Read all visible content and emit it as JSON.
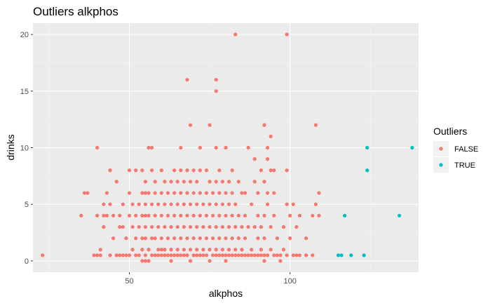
{
  "chart_data": {
    "type": "scatter",
    "title": "Outliers alkphos",
    "xlabel": "alkphos",
    "ylabel": "drinks",
    "xlim": [
      20,
      140
    ],
    "ylim": [
      -1,
      21
    ],
    "x_ticks": [
      50,
      100
    ],
    "y_ticks": [
      0,
      5,
      10,
      15,
      20
    ],
    "x_tick_labels": [
      "50",
      "100"
    ],
    "y_tick_labels": [
      "0",
      "5",
      "10",
      "15",
      "20"
    ],
    "grid": true,
    "legend": {
      "title": "Outliers",
      "position": "right",
      "entries": [
        "FALSE",
        "TRUE"
      ]
    },
    "series": [
      {
        "name": "FALSE",
        "color": "#F8766D",
        "points": [
          [
            23,
            0.5
          ],
          [
            35,
            4
          ],
          [
            36,
            6
          ],
          [
            37,
            6
          ],
          [
            39,
            0.5
          ],
          [
            40,
            0.5
          ],
          [
            40,
            4
          ],
          [
            40,
            10
          ],
          [
            41,
            1
          ],
          [
            41,
            0.5
          ],
          [
            42,
            3
          ],
          [
            42,
            4
          ],
          [
            42,
            5
          ],
          [
            43,
            4
          ],
          [
            43,
            6
          ],
          [
            44,
            8
          ],
          [
            44,
            0.5
          ],
          [
            44,
            5
          ],
          [
            45,
            2
          ],
          [
            45,
            4
          ],
          [
            46,
            0.5
          ],
          [
            46,
            7
          ],
          [
            47,
            3
          ],
          [
            47,
            4
          ],
          [
            47,
            0.5
          ],
          [
            48,
            3
          ],
          [
            48,
            0.5
          ],
          [
            48,
            5
          ],
          [
            49,
            0.5
          ],
          [
            49,
            2
          ],
          [
            50,
            0.5
          ],
          [
            50,
            4
          ],
          [
            50,
            6
          ],
          [
            50,
            8
          ],
          [
            51,
            1
          ],
          [
            51,
            3
          ],
          [
            51,
            5
          ],
          [
            52,
            0.5
          ],
          [
            52,
            2
          ],
          [
            52,
            4
          ],
          [
            52,
            8
          ],
          [
            53,
            0.5
          ],
          [
            53,
            3
          ],
          [
            53,
            5
          ],
          [
            54,
            0
          ],
          [
            54,
            1
          ],
          [
            54,
            2
          ],
          [
            54,
            4
          ],
          [
            54,
            6
          ],
          [
            54,
            8
          ],
          [
            55,
            0
          ],
          [
            55,
            0.5
          ],
          [
            55,
            2
          ],
          [
            55,
            3
          ],
          [
            55,
            4
          ],
          [
            55,
            5
          ],
          [
            55,
            6
          ],
          [
            55,
            7
          ],
          [
            56,
            10
          ],
          [
            56,
            0
          ],
          [
            56,
            1
          ],
          [
            56,
            4
          ],
          [
            56,
            6
          ],
          [
            57,
            0.5
          ],
          [
            57,
            2
          ],
          [
            57,
            3
          ],
          [
            57,
            5
          ],
          [
            57,
            8
          ],
          [
            57,
            10
          ],
          [
            58,
            0.5
          ],
          [
            58,
            2
          ],
          [
            58,
            4
          ],
          [
            58,
            6
          ],
          [
            58,
            7
          ],
          [
            59,
            0.5
          ],
          [
            59,
            1
          ],
          [
            59,
            3
          ],
          [
            59,
            5
          ],
          [
            60,
            0.5
          ],
          [
            60,
            1
          ],
          [
            60,
            2
          ],
          [
            60,
            4
          ],
          [
            60,
            6
          ],
          [
            60,
            8
          ],
          [
            61,
            0.5
          ],
          [
            61,
            1
          ],
          [
            61,
            3
          ],
          [
            61,
            5
          ],
          [
            61,
            7
          ],
          [
            62,
            0.5
          ],
          [
            62,
            2
          ],
          [
            62,
            4
          ],
          [
            62,
            6
          ],
          [
            63,
            0
          ],
          [
            63,
            0.5
          ],
          [
            63,
            1
          ],
          [
            63,
            3
          ],
          [
            63,
            5
          ],
          [
            63,
            7
          ],
          [
            64,
            0.5
          ],
          [
            64,
            2
          ],
          [
            64,
            4
          ],
          [
            64,
            6
          ],
          [
            64,
            8
          ],
          [
            65,
            0.5
          ],
          [
            65,
            1
          ],
          [
            65,
            3
          ],
          [
            65,
            5
          ],
          [
            65,
            7
          ],
          [
            66,
            0.5
          ],
          [
            66,
            2
          ],
          [
            66,
            4
          ],
          [
            66,
            6
          ],
          [
            66,
            8
          ],
          [
            66,
            10
          ],
          [
            67,
            0.5
          ],
          [
            67,
            1
          ],
          [
            67,
            3
          ],
          [
            67,
            5
          ],
          [
            67,
            7
          ],
          [
            68,
            0.5
          ],
          [
            68,
            2
          ],
          [
            68,
            4
          ],
          [
            68,
            6
          ],
          [
            68,
            8
          ],
          [
            68,
            16
          ],
          [
            69,
            12
          ],
          [
            69,
            0
          ],
          [
            69,
            1
          ],
          [
            69,
            3
          ],
          [
            69,
            5
          ],
          [
            69,
            7
          ],
          [
            70,
            0.5
          ],
          [
            70,
            2
          ],
          [
            70,
            4
          ],
          [
            70,
            6
          ],
          [
            70,
            8
          ],
          [
            71,
            0.5
          ],
          [
            71,
            1
          ],
          [
            71,
            3
          ],
          [
            71,
            5
          ],
          [
            71,
            7
          ],
          [
            72,
            0.5
          ],
          [
            72,
            2
          ],
          [
            72,
            4
          ],
          [
            72,
            6
          ],
          [
            72,
            8
          ],
          [
            72,
            10
          ],
          [
            73,
            0.5
          ],
          [
            73,
            1
          ],
          [
            73,
            3
          ],
          [
            73,
            5
          ],
          [
            74,
            0.5
          ],
          [
            74,
            2
          ],
          [
            74,
            4
          ],
          [
            74,
            6
          ],
          [
            74,
            8
          ],
          [
            75,
            12
          ],
          [
            75,
            0
          ],
          [
            75,
            1
          ],
          [
            75,
            3
          ],
          [
            75,
            5
          ],
          [
            75,
            7
          ],
          [
            76,
            0.5
          ],
          [
            76,
            2
          ],
          [
            76,
            4
          ],
          [
            76,
            6
          ],
          [
            77,
            16
          ],
          [
            77,
            15
          ],
          [
            77,
            0.5
          ],
          [
            77,
            1
          ],
          [
            77,
            3
          ],
          [
            77,
            5
          ],
          [
            77,
            7
          ],
          [
            77,
            10
          ],
          [
            78,
            0.5
          ],
          [
            78,
            2
          ],
          [
            78,
            4
          ],
          [
            78,
            6
          ],
          [
            78,
            8
          ],
          [
            79,
            0.5
          ],
          [
            79,
            1
          ],
          [
            79,
            3
          ],
          [
            79,
            5
          ],
          [
            79,
            7
          ],
          [
            80,
            0
          ],
          [
            80,
            0.5
          ],
          [
            80,
            2
          ],
          [
            80,
            4
          ],
          [
            80,
            6
          ],
          [
            80,
            10
          ],
          [
            81,
            0.5
          ],
          [
            81,
            1
          ],
          [
            81,
            3
          ],
          [
            81,
            5
          ],
          [
            81,
            7
          ],
          [
            82,
            0.5
          ],
          [
            82,
            2
          ],
          [
            82,
            4
          ],
          [
            82,
            6
          ],
          [
            82,
            8
          ],
          [
            83,
            20
          ],
          [
            83,
            0.5
          ],
          [
            83,
            1
          ],
          [
            83,
            3
          ],
          [
            83,
            5
          ],
          [
            84,
            0.5
          ],
          [
            84,
            2
          ],
          [
            84,
            4
          ],
          [
            84,
            7
          ],
          [
            85,
            0.5
          ],
          [
            85,
            1
          ],
          [
            85,
            3
          ],
          [
            85,
            6
          ],
          [
            86,
            0.5
          ],
          [
            86,
            2
          ],
          [
            86,
            4
          ],
          [
            86,
            6
          ],
          [
            87,
            10
          ],
          [
            87,
            0.5
          ],
          [
            87,
            3
          ],
          [
            88,
            0.5
          ],
          [
            88,
            1
          ],
          [
            88,
            5
          ],
          [
            89,
            9
          ],
          [
            89,
            0.5
          ],
          [
            89,
            3
          ],
          [
            89,
            7
          ],
          [
            90,
            0.5
          ],
          [
            90,
            2
          ],
          [
            90,
            4
          ],
          [
            90,
            6
          ],
          [
            91,
            0.5
          ],
          [
            91,
            1
          ],
          [
            91,
            3
          ],
          [
            91,
            8
          ],
          [
            92,
            12
          ],
          [
            92,
            0
          ],
          [
            92,
            0.5
          ],
          [
            92,
            2
          ],
          [
            92,
            4
          ],
          [
            92,
            7
          ],
          [
            93,
            10
          ],
          [
            93,
            9
          ],
          [
            93,
            0.5
          ],
          [
            93,
            5
          ],
          [
            93,
            6
          ],
          [
            94,
            11
          ],
          [
            94,
            8
          ],
          [
            94,
            1
          ],
          [
            94,
            3
          ],
          [
            95,
            8
          ],
          [
            95,
            0.5
          ],
          [
            95,
            4
          ],
          [
            95,
            6
          ],
          [
            96,
            0.5
          ],
          [
            96,
            2
          ],
          [
            97,
            0
          ],
          [
            97,
            0.5
          ],
          [
            98,
            1
          ],
          [
            98,
            3
          ],
          [
            99,
            20
          ],
          [
            99,
            0.5
          ],
          [
            99,
            8
          ],
          [
            99,
            5
          ],
          [
            100,
            4
          ],
          [
            100,
            2
          ],
          [
            101,
            0.5
          ],
          [
            101,
            5
          ],
          [
            102,
            0.5
          ],
          [
            102,
            3
          ],
          [
            103,
            0.5
          ],
          [
            103,
            4
          ],
          [
            105,
            0.5
          ],
          [
            105,
            2
          ],
          [
            107,
            0.5
          ],
          [
            107,
            4
          ],
          [
            108,
            12
          ],
          [
            108,
            5
          ],
          [
            109,
            4
          ],
          [
            109,
            6
          ]
        ]
      },
      {
        "name": "TRUE",
        "color": "#00BFC4",
        "points": [
          [
            115,
            0.5
          ],
          [
            116,
            0.5
          ],
          [
            117,
            4
          ],
          [
            119,
            0.5
          ],
          [
            123,
            0.5
          ],
          [
            124,
            10
          ],
          [
            124,
            8
          ],
          [
            134,
            4
          ],
          [
            138,
            10
          ]
        ]
      }
    ]
  }
}
